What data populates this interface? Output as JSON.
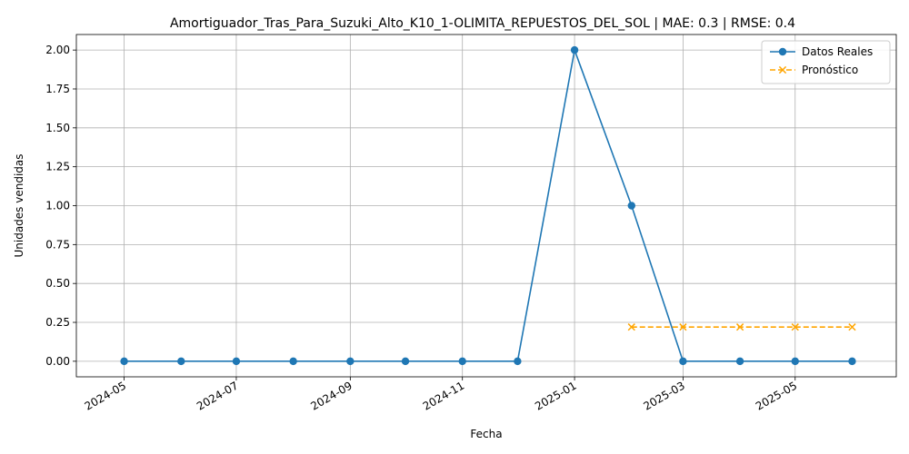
{
  "chart_data": {
    "type": "line",
    "title": "Amortiguador_Tras_Para_Suzuki_Alto_K10_1-OLIMITA_REPUESTOS_DEL_SOL | MAE: 0.3 | RMSE: 0.4",
    "xlabel": "Fecha",
    "ylabel": "Unidades vendidas",
    "ylim": [
      -0.1,
      2.1
    ],
    "xlim": [
      "2024-04-05",
      "2025-06-25"
    ],
    "yticks": [
      0.0,
      0.25,
      0.5,
      0.75,
      1.0,
      1.25,
      1.5,
      1.75,
      2.0
    ],
    "ytick_labels": [
      "0.00",
      "0.25",
      "0.50",
      "0.75",
      "1.00",
      "1.25",
      "1.50",
      "1.75",
      "2.00"
    ],
    "xticks": [
      "2024-05-01",
      "2024-07-01",
      "2024-09-01",
      "2024-11-01",
      "2025-01-01",
      "2025-03-01",
      "2025-05-01"
    ],
    "xtick_labels": [
      "2024-05",
      "2024-07",
      "2024-09",
      "2024-11",
      "2025-01",
      "2025-03",
      "2025-05"
    ],
    "grid": true,
    "legend_position": "top-right",
    "series": [
      {
        "name": "Datos Reales",
        "color": "#1f77b4",
        "marker": "circle",
        "line": "solid",
        "x": [
          "2024-05-01",
          "2024-06-01",
          "2024-07-01",
          "2024-08-01",
          "2024-09-01",
          "2024-10-01",
          "2024-11-01",
          "2024-12-01",
          "2025-01-01",
          "2025-02-01",
          "2025-03-01",
          "2025-04-01",
          "2025-05-01",
          "2025-06-01"
        ],
        "values": [
          0,
          0,
          0,
          0,
          0,
          0,
          0,
          0,
          2,
          1,
          0,
          0,
          0,
          0
        ]
      },
      {
        "name": "Pronóstico",
        "color": "#ffa500",
        "marker": "x",
        "line": "dashed",
        "x": [
          "2025-02-01",
          "2025-03-01",
          "2025-04-01",
          "2025-05-01",
          "2025-06-01"
        ],
        "values": [
          0.22,
          0.22,
          0.22,
          0.22,
          0.22
        ]
      }
    ]
  }
}
